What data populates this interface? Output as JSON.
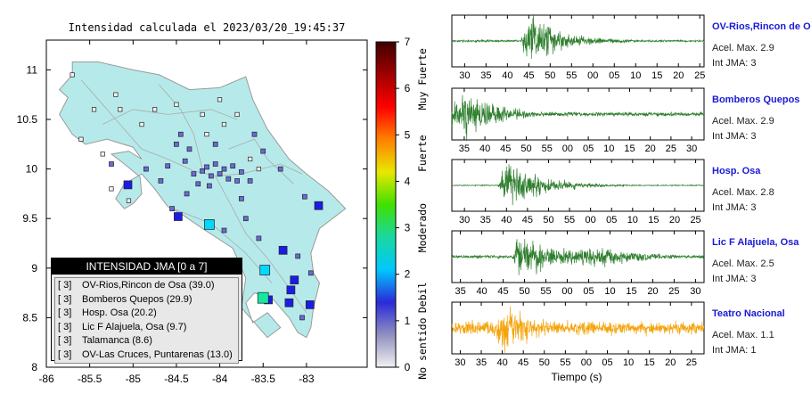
{
  "map": {
    "title": "Intensidad calculada el 2023/03/20_19:45:37",
    "chart_data": {
      "type": "scatter",
      "xlabel": "",
      "ylabel": "",
      "xlim": [
        -86,
        -82.3
      ],
      "ylim": [
        8,
        11.3
      ],
      "x_ticks": [
        "-86",
        "-85.5",
        "-85",
        "-84.5",
        "-84",
        "-83.5",
        "-83"
      ],
      "y_ticks": [
        "8",
        "8.5",
        "9",
        "9.5",
        "10",
        "10.5",
        "11"
      ],
      "stations": [
        {
          "lon": -84.48,
          "lat": 9.52,
          "int": 2
        },
        {
          "lon": -84.12,
          "lat": 9.44,
          "int": 3
        },
        {
          "lon": -83.27,
          "lat": 9.18,
          "int": 2
        },
        {
          "lon": -83.14,
          "lat": 8.88,
          "int": 2
        },
        {
          "lon": -83.18,
          "lat": 8.78,
          "int": 2
        },
        {
          "lon": -83.48,
          "lat": 8.98,
          "int": 3
        },
        {
          "lon": -83.44,
          "lat": 8.68,
          "int": 2
        },
        {
          "lon": -83.5,
          "lat": 8.7,
          "int": 4
        },
        {
          "lon": -83.2,
          "lat": 8.65,
          "int": 2
        },
        {
          "lon": -82.96,
          "lat": 8.63,
          "int": 2
        },
        {
          "lon": -85.06,
          "lat": 9.84,
          "int": 2
        },
        {
          "lon": -82.86,
          "lat": 9.63,
          "int": 2
        },
        {
          "lon": -83.8,
          "lat": 9.88,
          "int": 1
        },
        {
          "lon": -84.0,
          "lat": 9.95,
          "int": 1
        },
        {
          "lon": -84.1,
          "lat": 9.93,
          "int": 1
        },
        {
          "lon": -84.2,
          "lat": 9.98,
          "int": 1
        },
        {
          "lon": -83.9,
          "lat": 9.9,
          "int": 1
        },
        {
          "lon": -84.3,
          "lat": 9.95,
          "int": 1
        },
        {
          "lon": -84.05,
          "lat": 10.05,
          "int": 1
        },
        {
          "lon": -83.95,
          "lat": 10.0,
          "int": 1
        },
        {
          "lon": -84.15,
          "lat": 10.02,
          "int": 1
        },
        {
          "lon": -84.4,
          "lat": 10.08,
          "int": 1
        },
        {
          "lon": -84.35,
          "lat": 10.2,
          "int": 1
        },
        {
          "lon": -84.5,
          "lat": 10.25,
          "int": 1
        },
        {
          "lon": -84.6,
          "lat": 10.03,
          "int": 1
        },
        {
          "lon": -83.85,
          "lat": 10.03,
          "int": 1
        },
        {
          "lon": -83.75,
          "lat": 9.97,
          "int": 1
        },
        {
          "lon": -84.25,
          "lat": 9.85,
          "int": 1
        },
        {
          "lon": -84.12,
          "lat": 9.83,
          "int": 1
        },
        {
          "lon": -83.65,
          "lat": 9.88,
          "int": 1
        },
        {
          "lon": -84.38,
          "lat": 9.75,
          "int": 1
        },
        {
          "lon": -84.55,
          "lat": 9.6,
          "int": 1
        },
        {
          "lon": -84.45,
          "lat": 10.35,
          "int": 1
        },
        {
          "lon": -84.05,
          "lat": 10.25,
          "int": 1
        },
        {
          "lon": -83.5,
          "lat": 10.18,
          "int": 1
        },
        {
          "lon": -83.6,
          "lat": 10.35,
          "int": 1
        },
        {
          "lon": -83.3,
          "lat": 10.0,
          "int": 1
        },
        {
          "lon": -83.02,
          "lat": 9.72,
          "int": 1
        },
        {
          "lon": -83.7,
          "lat": 9.5,
          "int": 1
        },
        {
          "lon": -83.55,
          "lat": 9.3,
          "int": 1
        },
        {
          "lon": -83.95,
          "lat": 9.38,
          "int": 1
        },
        {
          "lon": -83.1,
          "lat": 9.12,
          "int": 1
        },
        {
          "lon": -83.05,
          "lat": 8.5,
          "int": 1
        },
        {
          "lon": -82.95,
          "lat": 8.95,
          "int": 1
        },
        {
          "lon": -83.75,
          "lat": 9.7,
          "int": 1
        },
        {
          "lon": -84.68,
          "lat": 9.88,
          "int": 1
        },
        {
          "lon": -84.85,
          "lat": 10.0,
          "int": 1
        },
        {
          "lon": -85.25,
          "lat": 10.05,
          "int": 1
        },
        {
          "lon": -85.6,
          "lat": 10.3,
          "int": 0
        },
        {
          "lon": -85.45,
          "lat": 10.6,
          "int": 0
        },
        {
          "lon": -85.15,
          "lat": 10.6,
          "int": 0
        },
        {
          "lon": -84.9,
          "lat": 10.45,
          "int": 0
        },
        {
          "lon": -85.7,
          "lat": 10.95,
          "int": 0
        },
        {
          "lon": -85.35,
          "lat": 10.15,
          "int": 0
        },
        {
          "lon": -85.2,
          "lat": 10.75,
          "int": 0
        },
        {
          "lon": -84.75,
          "lat": 10.6,
          "int": 0
        },
        {
          "lon": -84.2,
          "lat": 10.55,
          "int": 0
        },
        {
          "lon": -83.8,
          "lat": 10.55,
          "int": 0
        },
        {
          "lon": -83.65,
          "lat": 10.1,
          "int": 0
        },
        {
          "lon": -85.25,
          "lat": 9.8,
          "int": 0
        },
        {
          "lon": -85.05,
          "lat": 9.68,
          "int": 0
        },
        {
          "lon": -84.0,
          "lat": 10.7,
          "int": 0
        },
        {
          "lon": -83.55,
          "lat": 10.0,
          "int": 0
        },
        {
          "lon": -83.95,
          "lat": 10.45,
          "int": 0
        },
        {
          "lon": -84.5,
          "lat": 10.65,
          "int": 0
        },
        {
          "lon": -84.15,
          "lat": 10.35,
          "int": 0
        }
      ]
    },
    "legend": {
      "title": "INTENSIDAD JMA [0 a 7]",
      "items": [
        {
          "level": "[ 3]",
          "name": "OV-Rios,Rincon de Osa (39.0)"
        },
        {
          "level": "[ 3]",
          "name": "Bomberos Quepos (29.9)"
        },
        {
          "level": "[ 3]",
          "name": "Hosp. Osa (20.2)"
        },
        {
          "level": "[ 3]",
          "name": "Lic F Alajuela, Osa (9.7)"
        },
        {
          "level": "[ 3]",
          "name": "Talamanca (8.6)"
        },
        {
          "level": "[ 3]",
          "name": "OV-Las Cruces, Puntarenas (13.0)"
        }
      ]
    },
    "colorbar": {
      "ticks": [
        "0",
        "1",
        "2",
        "3",
        "4",
        "5",
        "6",
        "7"
      ],
      "labels": [
        "No sentido",
        "Debil",
        "Moderado",
        "Fuerte",
        "Muy Fuerte"
      ],
      "colors": [
        "#f0f0f0",
        "#9090c0",
        "#2a2ad8",
        "#00c8ff",
        "#19d8a0",
        "#40e000",
        "#e8e800",
        "#ff8000",
        "#ff0000",
        "#a00000",
        "#400000"
      ]
    }
  },
  "waveforms": {
    "xlabel": "Tiempo (s)",
    "traces": [
      {
        "station": "OV-Rios,Rincon de Osa",
        "acel": "Acel. Max. 2.9",
        "int": "Int JMA: 3",
        "color": "#2f7f2f",
        "ticks": [
          "30",
          "35",
          "40",
          "45",
          "50",
          "55",
          "00",
          "05",
          "10",
          "15",
          "20",
          "25"
        ],
        "t_start": 27,
        "t_end": 86,
        "burst": 45,
        "amp": 1.0,
        "noise": 0.04
      },
      {
        "station": "Bomberos Quepos",
        "acel": "Acel. Max. 2.9",
        "int": "Int JMA: 3",
        "color": "#2f7f2f",
        "ticks": [
          "35",
          "40",
          "45",
          "50",
          "55",
          "00",
          "05",
          "10",
          "15",
          "20",
          "25",
          "30"
        ],
        "t_start": 32,
        "t_end": 93,
        "burst": 35,
        "amp": 1.0,
        "noise": 0.08
      },
      {
        "station": "Hosp. Osa",
        "acel": "Acel. Max. 2.8",
        "int": "Int JMA: 3",
        "color": "#2f7f2f",
        "ticks": [
          "30",
          "35",
          "40",
          "45",
          "50",
          "55",
          "00",
          "05",
          "10",
          "15",
          "20",
          "25"
        ],
        "t_start": 27,
        "t_end": 87,
        "burst": 40,
        "amp": 1.0,
        "noise": 0.02
      },
      {
        "station": "Lic F Alajuela, Osa",
        "acel": "Acel. Max. 2.5",
        "int": "Int JMA: 3",
        "color": "#2f7f2f",
        "ticks": [
          "35",
          "40",
          "45",
          "50",
          "55",
          "00",
          "05",
          "10",
          "15",
          "20",
          "25",
          "30"
        ],
        "t_start": 33,
        "t_end": 92,
        "burst": 49,
        "amp": 1.0,
        "noise": 0.06
      },
      {
        "station": "Teatro Nacional",
        "acel": "Acel. Max. 1.1",
        "int": "Int JMA: 1",
        "color": "#f5a30a",
        "ticks": [
          "30",
          "35",
          "40",
          "45",
          "50",
          "55",
          "00",
          "05",
          "10",
          "15",
          "20",
          "25"
        ],
        "t_start": 28,
        "t_end": 88,
        "burst": 40,
        "amp": 1.0,
        "noise": 0.25
      }
    ]
  }
}
